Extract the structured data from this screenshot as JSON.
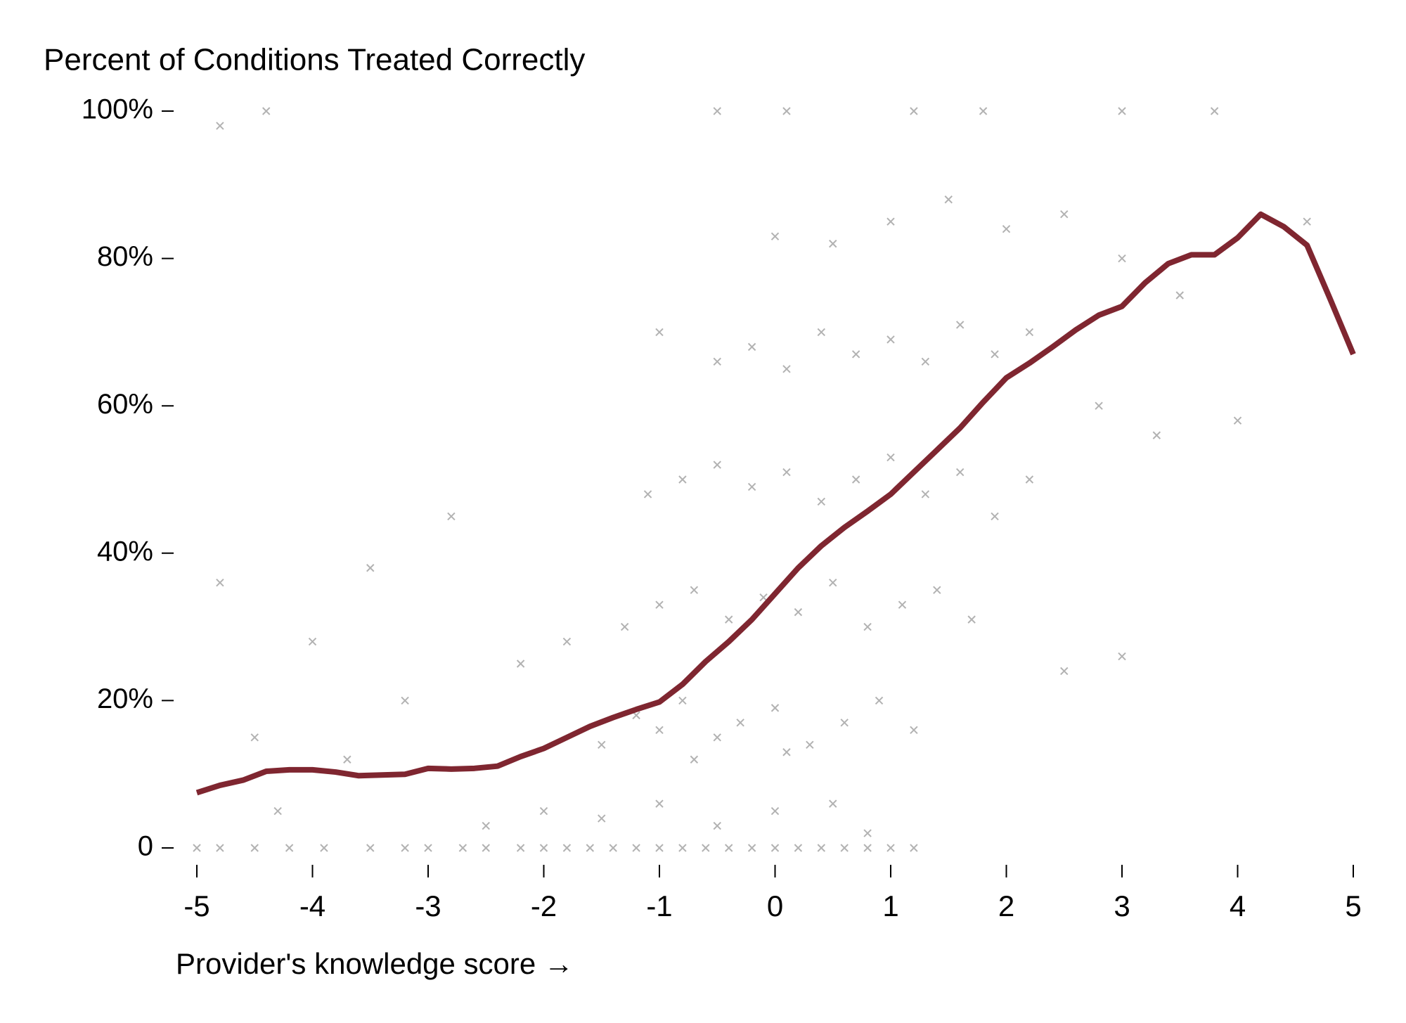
{
  "chart_data": {
    "type": "scatter",
    "title": "Percent of Conditions Treated Correctly",
    "x_label": "Provider's knowledge score →",
    "xlim": [
      -5,
      5
    ],
    "xticks": [
      -5,
      -4,
      -3,
      -2,
      -1,
      0,
      1,
      2,
      3,
      4,
      5
    ],
    "ylim": [
      0,
      100
    ],
    "yticks": [
      0,
      {
        "value": 20,
        "label": "20%"
      },
      {
        "value": 40,
        "label": "40%"
      },
      {
        "value": 60,
        "label": "60%"
      },
      {
        "value": 80,
        "label": "80%"
      },
      {
        "value": 100,
        "label": "100%"
      }
    ],
    "grid": false,
    "series": [
      {
        "type": "scatter",
        "color": "#000000",
        "x": [
          -5,
          -4.8,
          -4.5,
          -4.2,
          -3.9,
          -3.5,
          -3.2,
          -3,
          -2.7,
          -2.5,
          -2.2,
          -2,
          -1.8,
          -1.6,
          -1.4,
          -1.2,
          -1,
          -0.8,
          -0.6,
          -0.4,
          -0.2,
          0,
          0.2,
          0.4,
          0.6,
          0.8,
          1,
          1.2,
          -2,
          -1.5,
          -1,
          -0.5,
          0,
          0.5,
          -2.5,
          0.8,
          -1.5,
          -1.2,
          -1,
          -0.8,
          -0.5,
          -0.3,
          0,
          0.3,
          0.6,
          0.9,
          1.2,
          -0.7,
          0.1,
          -1.3,
          -1,
          -0.7,
          -0.4,
          -0.1,
          0.2,
          0.5,
          0.8,
          1.1,
          1.4,
          -1.8,
          1.7,
          -1.1,
          -0.8,
          -0.5,
          -0.2,
          0.1,
          0.4,
          0.7,
          1,
          1.3,
          1.6,
          1.9,
          2.2,
          -0.5,
          -0.2,
          0.1,
          0.4,
          0.7,
          1,
          1.3,
          1.6,
          1.9,
          2.2,
          -1,
          0.5,
          1,
          1.5,
          2,
          2.5,
          3,
          3.5,
          0,
          2.8,
          -2.8,
          -3.2,
          -4,
          -4.5,
          -3.5,
          -2.2,
          -4.8,
          -4.3,
          -3.7,
          -0.5,
          0.1,
          1.2,
          1.8,
          3,
          3.8,
          4.6,
          4,
          3.3,
          -4.4,
          -4.8,
          3,
          2.5
        ],
        "values": [
          0,
          0,
          0,
          0,
          0,
          0,
          0,
          0,
          0,
          0,
          0,
          0,
          0,
          0,
          0,
          0,
          0,
          0,
          0,
          0,
          0,
          0,
          0,
          0,
          0,
          0,
          0,
          0,
          5,
          4,
          6,
          3,
          5,
          6,
          3,
          2,
          14,
          18,
          16,
          20,
          15,
          17,
          19,
          14,
          17,
          20,
          16,
          12,
          13,
          30,
          33,
          35,
          31,
          34,
          32,
          36,
          30,
          33,
          35,
          28,
          31,
          48,
          50,
          52,
          49,
          51,
          47,
          50,
          53,
          48,
          51,
          45,
          50,
          66,
          68,
          65,
          70,
          67,
          69,
          66,
          71,
          67,
          70,
          70,
          82,
          85,
          88,
          84,
          86,
          80,
          75,
          83,
          60,
          45,
          20,
          28,
          15,
          38,
          25,
          36,
          5,
          12,
          100,
          100,
          100,
          100,
          100,
          100,
          85,
          58,
          56,
          100,
          98,
          26,
          24
        ]
      },
      {
        "type": "line",
        "color": "#7f2630",
        "x": [
          -5,
          -4.8,
          -4.6,
          -4.4,
          -4.2,
          -4,
          -3.8,
          -3.6,
          -3.4,
          -3.2,
          -3,
          -2.8,
          -2.6,
          -2.4,
          -2.2,
          -2,
          -1.8,
          -1.6,
          -1.4,
          -1.2,
          -1,
          -0.8,
          -0.6,
          -0.4,
          -0.2,
          0,
          0.2,
          0.4,
          0.6,
          0.8,
          1,
          1.2,
          1.4,
          1.6,
          1.8,
          2,
          2.2,
          2.4,
          2.6,
          2.8,
          3,
          3.2,
          3.4,
          3.6,
          3.8,
          4,
          4.2,
          4.4,
          4.6,
          4.8,
          5
        ],
        "values": [
          7.5,
          8.5,
          9.2,
          10.4,
          10.6,
          10.6,
          10.3,
          9.8,
          9.9,
          10,
          10.8,
          10.7,
          10.8,
          11.1,
          12.4,
          13.5,
          15,
          16.5,
          17.7,
          18.8,
          19.8,
          22.2,
          25.3,
          28,
          31,
          34.5,
          38,
          41,
          43.5,
          45.7,
          48,
          51,
          54,
          57,
          60.5,
          63.8,
          65.8,
          68,
          70.3,
          72.3,
          73.5,
          76.7,
          79.3,
          80.5,
          80.5,
          82.8,
          86,
          84.3,
          81.8,
          74.5,
          67
        ]
      }
    ]
  }
}
